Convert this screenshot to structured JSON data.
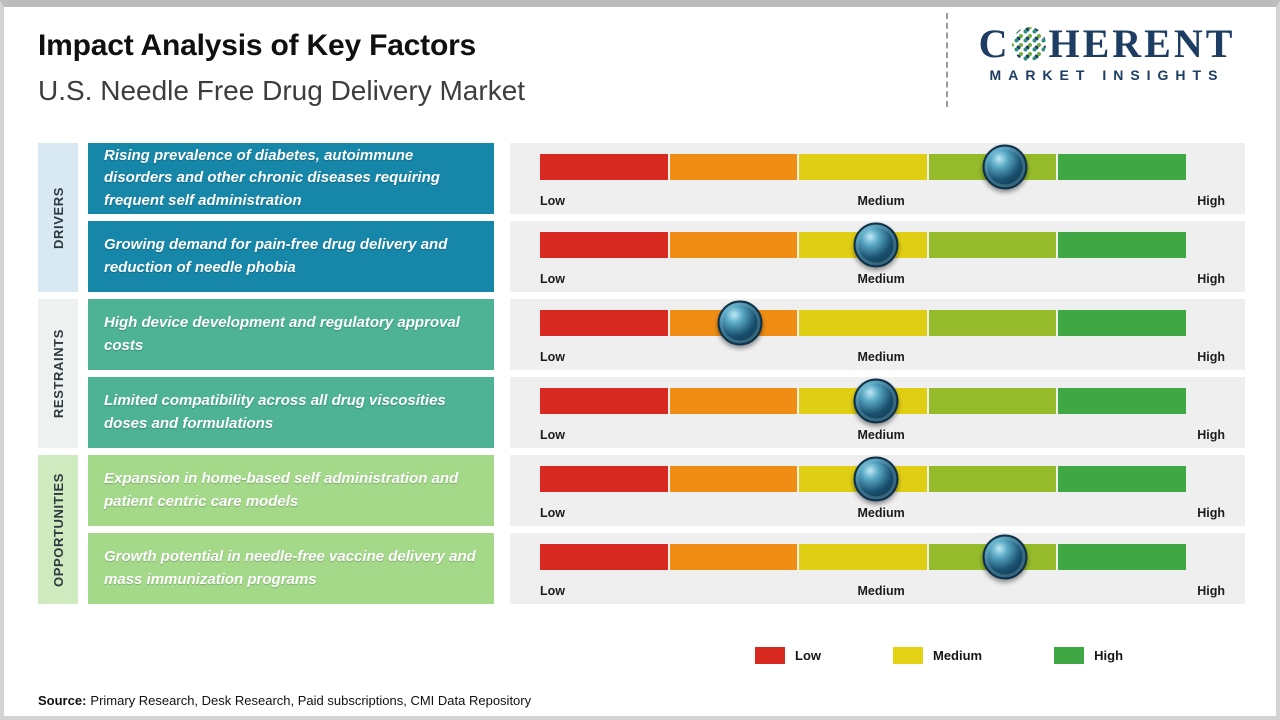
{
  "header": {
    "title": "Impact Analysis of Key Factors",
    "subtitle": "U.S. Needle Free Drug Delivery Market"
  },
  "logo": {
    "part1": "C",
    "part2": "HERENT",
    "tagline": "MARKET INSIGHTS"
  },
  "groups": [
    {
      "label": "DRIVERS"
    },
    {
      "label": "RESTRAINTS"
    },
    {
      "label": "OPPORTUNITIES"
    }
  ],
  "rows": [
    {
      "group": "DRIVERS",
      "text": "Rising prevalence of diabetes, autoimmune disorders and other chronic diseases requiring frequent self administration",
      "impact_pct": 72
    },
    {
      "group": "DRIVERS",
      "text": "Growing demand for pain-free drug delivery and reduction of needle phobia",
      "impact_pct": 52
    },
    {
      "group": "RESTRAINTS",
      "text": "High device development and regulatory approval costs",
      "impact_pct": 31
    },
    {
      "group": "RESTRAINTS",
      "text": "Limited compatibility across all drug viscosities doses and formulations",
      "impact_pct": 52
    },
    {
      "group": "OPPORTUNITIES",
      "text": "Expansion in home-based self administration and patient centric care models",
      "impact_pct": 52
    },
    {
      "group": "OPPORTUNITIES",
      "text": "Growth potential in needle-free vaccine delivery and mass immunization programs",
      "impact_pct": 72
    }
  ],
  "scale": {
    "low": "Low",
    "medium": "Medium",
    "high": "High"
  },
  "legend": [
    {
      "label": "Low",
      "color": "#d7291f"
    },
    {
      "label": "Medium",
      "color": "#e6d214"
    },
    {
      "label": "High",
      "color": "#3fa744"
    }
  ],
  "source": {
    "label": "Source:",
    "text": "Primary Research, Desk Research, Paid subscriptions, CMI Data Repository"
  },
  "colors": {
    "scale_segments": [
      "#d7291f",
      "#ef8d15",
      "#e0ce14",
      "#96bb2a",
      "#3fa744"
    ],
    "drivers_box": "#1787a9",
    "restraints_box": "#4db394",
    "opportunities_box": "#a4d98a",
    "drivers_strip": "#d8e9f3",
    "restraints_strip": "#edf1ef",
    "opportunities_strip": "#cfeabe",
    "marker": "#14445e",
    "logo_navy": "#1d3d63"
  },
  "chart_data": {
    "type": "bar",
    "title": "Impact Analysis of Key Factors",
    "subtitle": "U.S. Needle Free Drug Delivery Market",
    "orientation": "horizontal rating scale per factor",
    "scale_ticks": [
      "Low",
      "Medium",
      "High"
    ],
    "groups": [
      "DRIVERS",
      "DRIVERS",
      "RESTRAINTS",
      "RESTRAINTS",
      "OPPORTUNITIES",
      "OPPORTUNITIES"
    ],
    "categories": [
      "Rising prevalence of diabetes, autoimmune disorders and other chronic diseases requiring frequent self administration",
      "Growing demand for pain-free drug delivery and reduction of needle phobia",
      "High device development and regulatory approval costs",
      "Limited compatibility across all drug viscosities doses and formulations",
      "Expansion in home-based self administration and patient centric care models",
      "Growth potential in needle-free vaccine delivery and mass immunization programs"
    ],
    "values_pct_along_scale": [
      72,
      52,
      31,
      52,
      52,
      72
    ],
    "legend": [
      "Low",
      "Medium",
      "High"
    ],
    "legend_position": "bottom-right"
  }
}
